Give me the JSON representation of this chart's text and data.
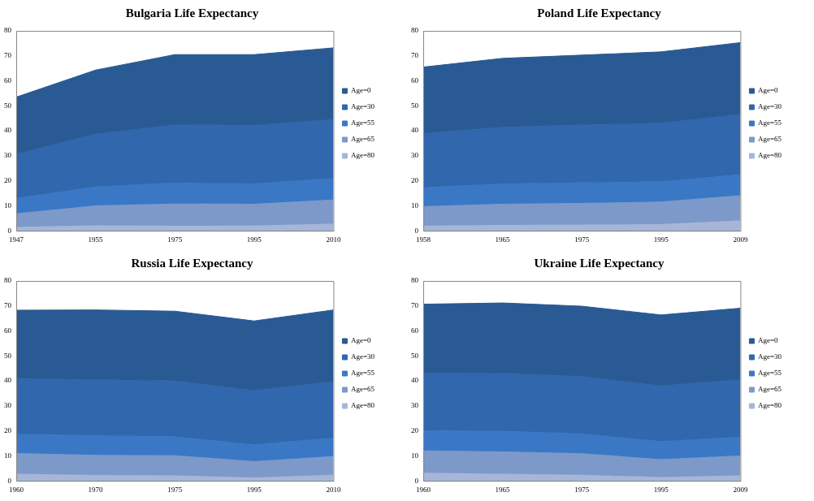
{
  "chart_data": [
    {
      "type": "area",
      "title": "Bulgaria Life Expectancy",
      "categories": [
        "1947",
        "1955",
        "1975",
        "1995",
        "2010"
      ],
      "ylim": [
        0,
        80
      ],
      "yticks": [
        0,
        10,
        20,
        30,
        40,
        50,
        60,
        70,
        80
      ],
      "grid": false,
      "legend": "right",
      "series": [
        {
          "name": "Age=0",
          "color": "#2a5a94",
          "values": [
            53.5,
            64.3,
            70.5,
            70.5,
            73.2
          ]
        },
        {
          "name": "Age=30",
          "color": "#3167ad",
          "values": [
            30.7,
            38.7,
            42.5,
            42.2,
            44.6
          ]
        },
        {
          "name": "Age=55",
          "color": "#3a78c6",
          "values": [
            13.1,
            17.6,
            19.2,
            18.9,
            21
          ]
        },
        {
          "name": "Age=65",
          "color": "#7d99c9",
          "values": [
            7,
            10.1,
            10.9,
            10.8,
            12.5
          ]
        },
        {
          "name": "Age=80",
          "color": "#a6b6d8",
          "values": [
            1.5,
            2.2,
            2,
            2.1,
            2.8
          ]
        }
      ]
    },
    {
      "type": "area",
      "title": "Poland Life Expectancy",
      "categories": [
        "1958",
        "1965",
        "1975",
        "1995",
        "2009"
      ],
      "ylim": [
        0,
        80
      ],
      "yticks": [
        0,
        10,
        20,
        30,
        40,
        50,
        60,
        70,
        80
      ],
      "grid": false,
      "legend": "right",
      "series": [
        {
          "name": "Age=0",
          "color": "#2a5a94",
          "values": [
            65.5,
            69,
            70.3,
            71.6,
            75.3
          ]
        },
        {
          "name": "Age=30",
          "color": "#3167ad",
          "values": [
            39,
            41.5,
            42.4,
            43.1,
            46.6
          ]
        },
        {
          "name": "Age=55",
          "color": "#3a78c6",
          "values": [
            17.4,
            18.8,
            19.3,
            19.7,
            22.6
          ]
        },
        {
          "name": "Age=65",
          "color": "#7d99c9",
          "values": [
            9.8,
            10.8,
            11.1,
            11.7,
            14.2
          ]
        },
        {
          "name": "Age=80",
          "color": "#a6b6d8",
          "values": [
            2,
            2.3,
            2.4,
            2.7,
            4.1
          ]
        }
      ]
    },
    {
      "type": "area",
      "title": "Russia Life Expectancy",
      "categories": [
        "1960",
        "1970",
        "1975",
        "1995",
        "2010"
      ],
      "ylim": [
        0,
        80
      ],
      "yticks": [
        0,
        10,
        20,
        30,
        40,
        50,
        60,
        70,
        80
      ],
      "grid": false,
      "legend": "right",
      "series": [
        {
          "name": "Age=0",
          "color": "#2a5a94",
          "values": [
            68.3,
            68.4,
            67.9,
            64,
            68.4
          ]
        },
        {
          "name": "Age=30",
          "color": "#3167ad",
          "values": [
            41,
            40.5,
            40,
            36.2,
            39.8
          ]
        },
        {
          "name": "Age=55",
          "color": "#3a78c6",
          "values": [
            18.8,
            18.2,
            17.8,
            14.5,
            17.3
          ]
        },
        {
          "name": "Age=65",
          "color": "#7d99c9",
          "values": [
            11.1,
            10.4,
            10.2,
            7.9,
            9.9
          ]
        },
        {
          "name": "Age=80",
          "color": "#a6b6d8",
          "values": [
            2.8,
            2.3,
            2.2,
            1.4,
            2.4
          ]
        }
      ]
    },
    {
      "type": "area",
      "title": "Ukraine Life Expectancy",
      "categories": [
        "1960",
        "1965",
        "1975",
        "1995",
        "2009"
      ],
      "ylim": [
        0,
        80
      ],
      "yticks": [
        0,
        10,
        20,
        30,
        40,
        50,
        60,
        70,
        80
      ],
      "grid": false,
      "legend": "right",
      "series": [
        {
          "name": "Age=0",
          "color": "#2a5a94",
          "values": [
            70.7,
            71.2,
            69.9,
            66.4,
            69.1
          ]
        },
        {
          "name": "Age=30",
          "color": "#3167ad",
          "values": [
            43,
            43.1,
            41.8,
            38.1,
            40.6
          ]
        },
        {
          "name": "Age=55",
          "color": "#3a78c6",
          "values": [
            20.2,
            20,
            18.9,
            15.8,
            17.6
          ]
        },
        {
          "name": "Age=65",
          "color": "#7d99c9",
          "values": [
            12.2,
            11.8,
            11,
            8.7,
            10.1
          ]
        },
        {
          "name": "Age=80",
          "color": "#a6b6d8",
          "values": [
            3.2,
            2.8,
            2.4,
            1.5,
            2.2
          ]
        }
      ]
    }
  ]
}
